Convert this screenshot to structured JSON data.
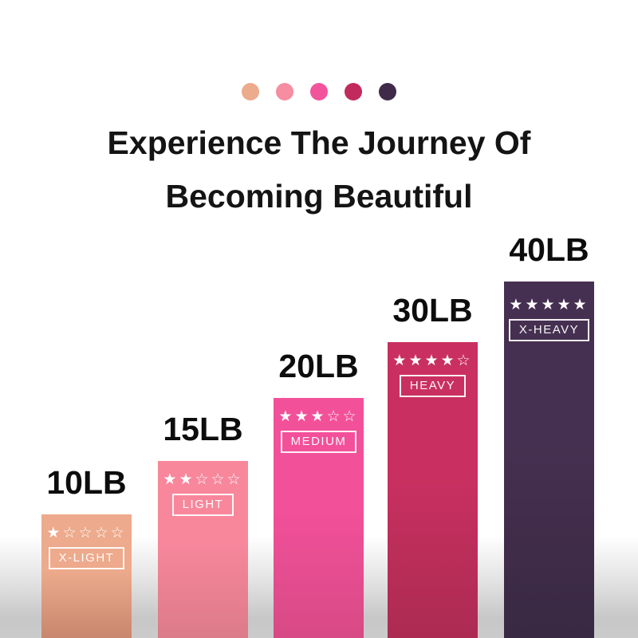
{
  "header": {
    "title_line1": "Experience The Journey Of",
    "title_line2": "Becoming Beautiful"
  },
  "palette": [
    "#ecab8d",
    "#f78da0",
    "#f2549b",
    "#c22a5e",
    "#3f2b49"
  ],
  "chart_data": {
    "type": "bar",
    "title": "Experience The Journey Of Becoming Beautiful",
    "categories": [
      "X-LIGHT",
      "LIGHT",
      "MEDIUM",
      "HEAVY",
      "X-HEAVY"
    ],
    "values": [
      10,
      15,
      20,
      30,
      40
    ],
    "unit": "LB",
    "xlabel": "",
    "ylabel": "",
    "ylim": [
      0,
      40
    ],
    "legend_position": "none",
    "grid": false,
    "bars": [
      {
        "weight_label": "10LB",
        "name": "X-LIGHT",
        "value": 10,
        "rating": 1,
        "stars_display": "★☆☆☆☆",
        "color_top": "#edaa8c",
        "color_bottom": "#c8876e"
      },
      {
        "weight_label": "15LB",
        "name": "LIGHT",
        "value": 15,
        "rating": 2,
        "stars_display": "★★☆☆☆",
        "color_top": "#f8879c",
        "color_bottom": "#dc7b8a"
      },
      {
        "weight_label": "20LB",
        "name": "MEDIUM",
        "value": 20,
        "rating": 3,
        "stars_display": "★★★☆☆",
        "color_top": "#f3509a",
        "color_bottom": "#d74a85"
      },
      {
        "weight_label": "30LB",
        "name": "HEAVY",
        "value": 30,
        "rating": 4,
        "stars_display": "★★★★☆",
        "color_top": "#c93061",
        "color_bottom": "#ac2b52"
      },
      {
        "weight_label": "40LB",
        "name": "X-HEAVY",
        "value": 40,
        "rating": 5,
        "stars_display": "★★★★★",
        "color_top": "#463051",
        "color_bottom": "#392942"
      }
    ]
  }
}
